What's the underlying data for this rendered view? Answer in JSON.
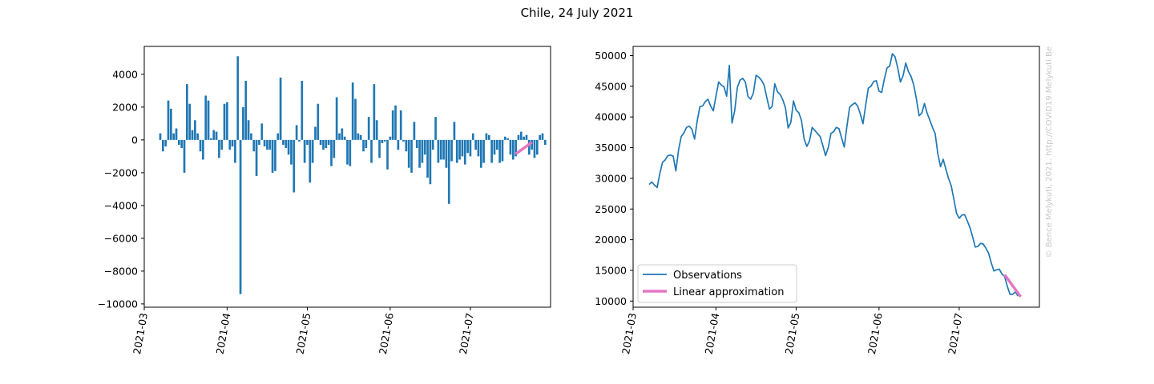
{
  "figure": {
    "title": "Chile, 24 July 2021",
    "credit": "© Bence Melykuti, 2021. http://COVID19.Melykuti.Be"
  },
  "colors": {
    "observations": "#1f77b4",
    "approximation": "#e377c2"
  },
  "chart_data": [
    {
      "type": "bar",
      "title": "",
      "xlabel": "",
      "ylabel": "",
      "x_start": "2021-03-07",
      "x_end": "2021-07-24",
      "xlim": [
        "2021-03-01",
        "2021-07-31"
      ],
      "ylim": [
        -10200,
        5700
      ],
      "x_ticks": [
        "2021-03",
        "2021-04",
        "2021-05",
        "2021-06",
        "2021-07"
      ],
      "y_ticks": [
        4000,
        2000,
        0,
        -2000,
        -4000,
        -6000,
        -8000,
        -10000
      ],
      "y_tick_labels": [
        "4000",
        "2000",
        "0",
        "−2000",
        "−4000",
        "−6000",
        "−8000",
        "−10000"
      ],
      "values": [
        400,
        -700,
        -400,
        2400,
        1900,
        400,
        700,
        -300,
        -500,
        -2000,
        3400,
        2200,
        600,
        1200,
        400,
        -700,
        -1200,
        2700,
        2400,
        100,
        600,
        500,
        -1100,
        -600,
        2200,
        2300,
        -600,
        -400,
        -1400,
        5100,
        -9400,
        2000,
        3600,
        1200,
        400,
        -700,
        -2200,
        -300,
        1000,
        -400,
        -600,
        -600,
        -2000,
        -1900,
        400,
        3800,
        -300,
        -500,
        -900,
        -1500,
        -3200,
        900,
        -100,
        3600,
        -1400,
        -300,
        -2600,
        -1400,
        800,
        2200,
        -300,
        -600,
        -500,
        -300,
        -1600,
        -1100,
        2600,
        400,
        700,
        200,
        -1500,
        -1600,
        3500,
        2500,
        400,
        300,
        -700,
        -500,
        1400,
        -1400,
        3400,
        1200,
        -1100,
        -200,
        -100,
        -1800,
        200,
        1800,
        2100,
        -600,
        1800,
        -100,
        -700,
        -1700,
        -2000,
        1100,
        -500,
        -1700,
        -1400,
        -900,
        -2300,
        -2700,
        -600,
        1400,
        -1400,
        -1200,
        -1200,
        -1700,
        -3900,
        -1300,
        1100,
        -1400,
        -1200,
        -1000,
        -1500,
        -800,
        -1000,
        400,
        -600,
        -1000,
        -1700,
        -1400,
        400,
        300,
        -1400,
        -900,
        -600,
        -1400,
        -1300,
        200,
        100,
        -900,
        -1200,
        -1000,
        300,
        500,
        200,
        300,
        -900,
        -600,
        -1100,
        -900,
        300,
        400,
        -300
      ],
      "approximation": {
        "name": "Linear approximation",
        "x": [
          "2021-07-18",
          "2021-07-24"
        ],
        "y": [
          -850,
          -150
        ]
      }
    },
    {
      "type": "line",
      "title": "",
      "xlabel": "",
      "ylabel": "",
      "xlim": [
        "2021-03-01",
        "2021-07-31"
      ],
      "ylim": [
        9000,
        51500
      ],
      "x_ticks": [
        "2021-03",
        "2021-04",
        "2021-05",
        "2021-06",
        "2021-07"
      ],
      "y_ticks": [
        50000,
        45000,
        40000,
        35000,
        30000,
        25000,
        20000,
        15000,
        10000
      ],
      "y_tick_labels": [
        "50000",
        "45000",
        "40000",
        "35000",
        "30000",
        "25000",
        "20000",
        "15000",
        "10000"
      ],
      "legend": {
        "placement": "lower-left"
      },
      "series": [
        {
          "name": "Observations",
          "x_start": "2021-03-07",
          "values": [
            29000,
            29400,
            28900,
            28500,
            30800,
            32600,
            33000,
            33700,
            33800,
            33600,
            31200,
            34600,
            36800,
            37400,
            38300,
            38500,
            38000,
            36400,
            39400,
            41700,
            41800,
            42500,
            42900,
            41800,
            41000,
            43400,
            45700,
            45200,
            44900,
            43400,
            48400,
            39000,
            41000,
            44800,
            46000,
            46300,
            45700,
            43300,
            42900,
            43900,
            46800,
            46500,
            46000,
            45200,
            43200,
            41300,
            41700,
            45400,
            44100,
            43700,
            42800,
            41500,
            38200,
            39100,
            42600,
            41100,
            40700,
            39400,
            36400,
            35200,
            36100,
            38300,
            37800,
            37300,
            36800,
            35300,
            33700,
            35000,
            37300,
            37600,
            38300,
            38100,
            36600,
            35100,
            38500,
            41600,
            42000,
            42300,
            41800,
            40500,
            38900,
            41900,
            44700,
            45000,
            45800,
            45900,
            44200,
            44000,
            46200,
            48000,
            48300,
            50300,
            49800,
            48000,
            45700,
            46700,
            48800,
            47400,
            46600,
            45200,
            42900,
            40200,
            40600,
            42200,
            40600,
            39500,
            38300,
            37300,
            34000,
            31900,
            33100,
            31500,
            30000,
            28800,
            26600,
            24300,
            23500,
            24000,
            24100,
            23100,
            22000,
            20500,
            18800,
            18900,
            19400,
            19300,
            18600,
            17800,
            16200,
            14900,
            15100,
            15200,
            14400,
            14000,
            12400,
            11100,
            11100,
            11500,
            10800
          ]
        }
      ],
      "approximation": {
        "name": "Linear approximation",
        "x": [
          "2021-07-18",
          "2021-07-24"
        ],
        "y": [
          14300,
          10700
        ]
      }
    }
  ]
}
